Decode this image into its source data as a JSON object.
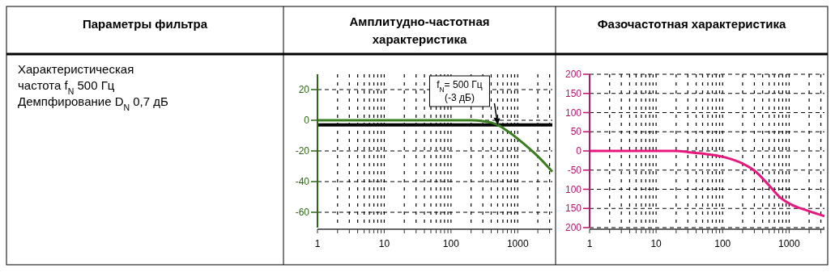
{
  "chart_data": [
    {
      "type": "other",
      "title": "Параметры фильтра",
      "annotations": [
        "Характеристическая",
        "частота f$_{N}$ 500 Гц",
        "Демпфирование D$_{N}$ 0,7 дБ"
      ]
    },
    {
      "type": "line",
      "title": "Амплитудно-частотная\nхарактеристика",
      "log": "x",
      "grid": true,
      "line_style": "solid",
      "marker": "none",
      "xlim": [
        1,
        3300
      ],
      "xticks": [
        1,
        {
          "value": 2,
          "label": null
        },
        {
          "value": 3,
          "label": null
        },
        {
          "value": 4,
          "label": null
        },
        {
          "value": 5,
          "label": null
        },
        {
          "value": 6,
          "label": null
        },
        {
          "value": 7,
          "label": null
        },
        {
          "value": 8,
          "label": null
        },
        {
          "value": 9,
          "label": null
        },
        10,
        {
          "value": 20,
          "label": null
        },
        {
          "value": 30,
          "label": null
        },
        {
          "value": 40,
          "label": null
        },
        {
          "value": 50,
          "label": null
        },
        {
          "value": 60,
          "label": null
        },
        {
          "value": 70,
          "label": null
        },
        {
          "value": 80,
          "label": null
        },
        {
          "value": 90,
          "label": null
        },
        100,
        {
          "value": 200,
          "label": null
        },
        {
          "value": 300,
          "label": null
        },
        {
          "value": 400,
          "label": null
        },
        {
          "value": 500,
          "label": null
        },
        {
          "value": 600,
          "label": null
        },
        {
          "value": 700,
          "label": null
        },
        {
          "value": 800,
          "label": null
        },
        {
          "value": 900,
          "label": null
        },
        1000,
        {
          "value": 2000,
          "label": null
        },
        {
          "value": 3000,
          "label": null
        }
      ],
      "ylim": [
        -70,
        30
      ],
      "yticks": [
        -60,
        -40,
        -20,
        0,
        20
      ],
      "x": [
        1,
        10,
        100,
        200,
        300,
        400,
        500,
        700,
        1000,
        1500,
        2000,
        3300
      ],
      "series": [
        {
          "color": "#3a7d1e",
          "values": [
            0,
            0,
            0,
            0,
            -0.5,
            -1.5,
            -3,
            -7,
            -12,
            -18.5,
            -23.5,
            -33.5
          ]
        }
      ],
      "ref_lines": [
        {
          "axis": "y",
          "value": -3,
          "color": "#000000",
          "line_style": "solid"
        }
      ],
      "annotations": [
        {
          "text": "f$_{N}$= 500 Гц\n(-3 дБ)",
          "x": 500,
          "y": -3
        }
      ]
    },
    {
      "type": "line",
      "title": "Фазочастотная характеристика",
      "log": "x",
      "grid": true,
      "line_style": "solid",
      "marker": "none",
      "xlim": [
        1,
        3400
      ],
      "xticks": [
        1,
        {
          "value": 2,
          "label": null
        },
        {
          "value": 3,
          "label": null
        },
        {
          "value": 4,
          "label": null
        },
        {
          "value": 5,
          "label": null
        },
        {
          "value": 6,
          "label": null
        },
        {
          "value": 7,
          "label": null
        },
        {
          "value": 8,
          "label": null
        },
        {
          "value": 9,
          "label": null
        },
        10,
        {
          "value": 20,
          "label": null
        },
        {
          "value": 30,
          "label": null
        },
        {
          "value": 40,
          "label": null
        },
        {
          "value": 50,
          "label": null
        },
        {
          "value": 60,
          "label": null
        },
        {
          "value": 70,
          "label": null
        },
        {
          "value": 80,
          "label": null
        },
        {
          "value": 90,
          "label": null
        },
        100,
        {
          "value": 200,
          "label": null
        },
        {
          "value": 300,
          "label": null
        },
        {
          "value": 400,
          "label": null
        },
        {
          "value": 500,
          "label": null
        },
        {
          "value": 600,
          "label": null
        },
        {
          "value": 700,
          "label": null
        },
        {
          "value": 800,
          "label": null
        },
        {
          "value": 900,
          "label": null
        },
        1000,
        {
          "value": 2000,
          "label": null
        },
        {
          "value": 3000,
          "label": null
        }
      ],
      "ylim": [
        -200,
        200
      ],
      "yticks": [
        {
          "value": -200,
          "label": "200"
        },
        {
          "value": -150,
          "label": "150"
        },
        {
          "value": -100,
          "label": "100"
        },
        -50,
        0,
        50,
        100,
        150,
        200
      ],
      "x": [
        1,
        10,
        20,
        30,
        50,
        100,
        200,
        300,
        500,
        700,
        1000,
        2000,
        3400
      ],
      "series": [
        {
          "color": "#e6177f",
          "values": [
            0,
            0,
            0,
            -3,
            -7,
            -15,
            -33,
            -51,
            -90,
            -118,
            -137,
            -157,
            -170
          ]
        }
      ]
    }
  ]
}
